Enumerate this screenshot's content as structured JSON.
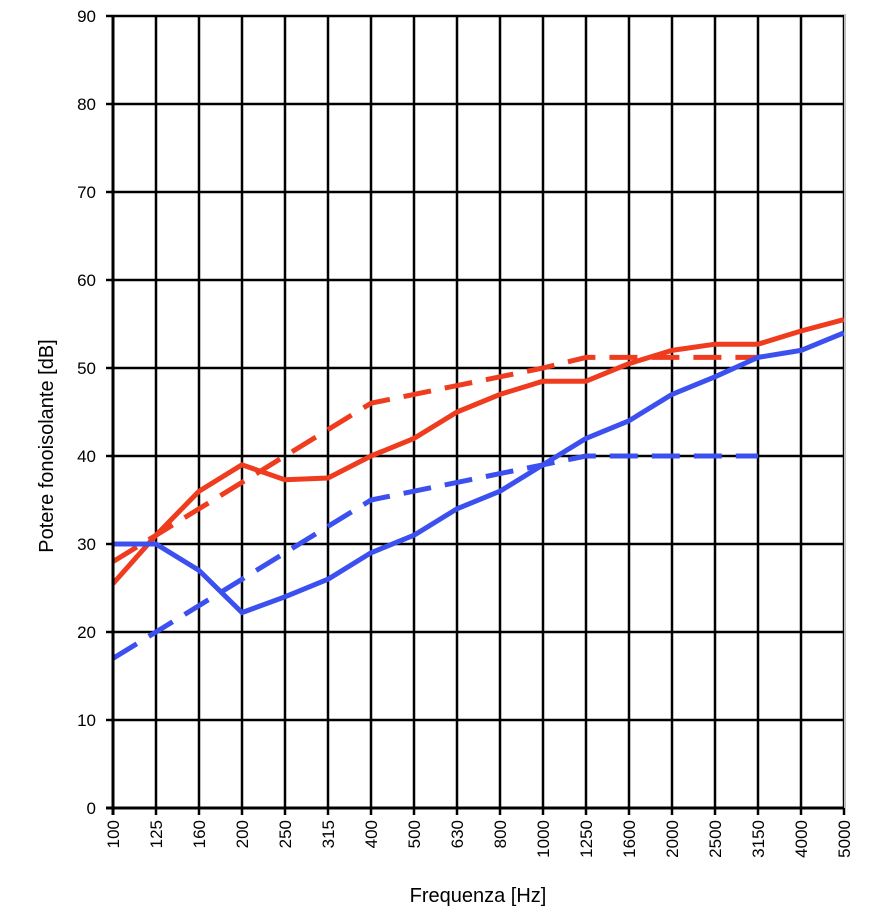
{
  "chart_data": {
    "type": "line",
    "title": "",
    "xlabel": "Frequenza [Hz]",
    "ylabel": "Potere fonoisolante [dB]",
    "categories": [
      "100",
      "125",
      "160",
      "200",
      "250",
      "315",
      "400",
      "500",
      "630",
      "800",
      "1000",
      "1250",
      "1600",
      "2000",
      "2500",
      "3150",
      "4000",
      "5000"
    ],
    "yticks": [
      "0",
      "10",
      "20",
      "30",
      "40",
      "50",
      "60",
      "70",
      "80",
      "90"
    ],
    "ylim": [
      0,
      90
    ],
    "grid": true,
    "legend": "none",
    "series": [
      {
        "color": "#f03c1e",
        "style": "solid",
        "values": [
          25.5,
          31,
          36,
          39,
          37.3,
          37.5,
          40,
          42,
          45,
          47,
          48.5,
          48.5,
          50.5,
          52,
          52.7,
          52.7,
          54.2,
          55.5
        ]
      },
      {
        "color": "#f03c1e",
        "style": "dashed",
        "values": [
          28,
          31,
          34,
          37,
          40,
          43,
          46,
          47,
          48,
          49,
          50,
          51.2,
          51.2,
          51.2,
          51.2,
          51.2,
          null,
          null
        ]
      },
      {
        "color": "#3c50f0",
        "style": "solid",
        "values": [
          30,
          30,
          27,
          22.2,
          24,
          26,
          29,
          31,
          34,
          36,
          39,
          42,
          44,
          47,
          49,
          51.2,
          52,
          54
        ]
      },
      {
        "color": "#3c50f0",
        "style": "dashed",
        "values": [
          17,
          20,
          23,
          26,
          29,
          32,
          35,
          36,
          37,
          38,
          39,
          40,
          40,
          40,
          40,
          40,
          null,
          null
        ]
      }
    ]
  }
}
